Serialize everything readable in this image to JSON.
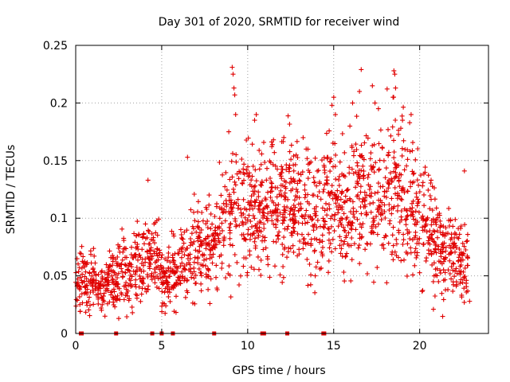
{
  "chart_data": {
    "type": "scatter",
    "title": "Day 301 of 2020, SRMTID for receiver wind",
    "xlabel": "GPS time / hours",
    "ylabel": "SRMTID / TECUs",
    "xlim": [
      0,
      24
    ],
    "ylim": [
      0,
      0.25
    ],
    "x_ticks": [
      0,
      5,
      10,
      15,
      20
    ],
    "x_tick_labels": [
      "0",
      "5",
      "10",
      "15",
      "20"
    ],
    "y_ticks": [
      0,
      0.05,
      0.1,
      0.15,
      0.2,
      0.25
    ],
    "y_tick_labels": [
      "0",
      "0.05",
      "0.1",
      "0.15",
      "0.2",
      "0.25"
    ],
    "grid": true,
    "legend": "none",
    "color": "#e00000",
    "marker": "plus",
    "series": [
      {
        "name": "SRMTID",
        "points_per_hour": 85,
        "x_range": [
          0,
          22.8
        ],
        "envelope": [
          {
            "x": 0.0,
            "y": 0.045,
            "spread": 0.012
          },
          {
            "x": 1.0,
            "y": 0.045,
            "spread": 0.012
          },
          {
            "x": 1.6,
            "y": 0.04,
            "spread": 0.01
          },
          {
            "x": 2.4,
            "y": 0.05,
            "spread": 0.014
          },
          {
            "x": 3.5,
            "y": 0.06,
            "spread": 0.016
          },
          {
            "x": 4.2,
            "y": 0.065,
            "spread": 0.018
          },
          {
            "x": 4.8,
            "y": 0.06,
            "spread": 0.016
          },
          {
            "x": 5.2,
            "y": 0.048,
            "spread": 0.013
          },
          {
            "x": 6.0,
            "y": 0.055,
            "spread": 0.015
          },
          {
            "x": 6.8,
            "y": 0.075,
            "spread": 0.02
          },
          {
            "x": 7.8,
            "y": 0.075,
            "spread": 0.02
          },
          {
            "x": 8.6,
            "y": 0.09,
            "spread": 0.025
          },
          {
            "x": 9.4,
            "y": 0.11,
            "spread": 0.028
          },
          {
            "x": 10.5,
            "y": 0.11,
            "spread": 0.028
          },
          {
            "x": 12.0,
            "y": 0.115,
            "spread": 0.028
          },
          {
            "x": 13.2,
            "y": 0.11,
            "spread": 0.026
          },
          {
            "x": 14.3,
            "y": 0.105,
            "spread": 0.026
          },
          {
            "x": 15.0,
            "y": 0.115,
            "spread": 0.03
          },
          {
            "x": 15.6,
            "y": 0.1,
            "spread": 0.028
          },
          {
            "x": 16.5,
            "y": 0.125,
            "spread": 0.032
          },
          {
            "x": 17.8,
            "y": 0.12,
            "spread": 0.032
          },
          {
            "x": 19.0,
            "y": 0.12,
            "spread": 0.032
          },
          {
            "x": 20.2,
            "y": 0.105,
            "spread": 0.028
          },
          {
            "x": 21.0,
            "y": 0.075,
            "spread": 0.02
          },
          {
            "x": 22.0,
            "y": 0.07,
            "spread": 0.018
          },
          {
            "x": 22.8,
            "y": 0.06,
            "spread": 0.016
          }
        ],
        "outliers": [
          {
            "x": 4.2,
            "y": 0.133
          },
          {
            "x": 6.5,
            "y": 0.153
          },
          {
            "x": 9.1,
            "y": 0.231
          },
          {
            "x": 9.15,
            "y": 0.225
          },
          {
            "x": 9.2,
            "y": 0.213
          },
          {
            "x": 9.25,
            "y": 0.207
          },
          {
            "x": 9.3,
            "y": 0.19
          },
          {
            "x": 8.9,
            "y": 0.175
          },
          {
            "x": 10.5,
            "y": 0.19
          },
          {
            "x": 10.4,
            "y": 0.185
          },
          {
            "x": 11.5,
            "y": 0.168
          },
          {
            "x": 12.1,
            "y": 0.17
          },
          {
            "x": 13.4,
            "y": 0.16
          },
          {
            "x": 15.0,
            "y": 0.205
          },
          {
            "x": 14.9,
            "y": 0.198
          },
          {
            "x": 15.1,
            "y": 0.19
          },
          {
            "x": 16.6,
            "y": 0.229
          },
          {
            "x": 16.1,
            "y": 0.2
          },
          {
            "x": 16.5,
            "y": 0.21
          },
          {
            "x": 17.4,
            "y": 0.2
          },
          {
            "x": 17.6,
            "y": 0.195
          },
          {
            "x": 18.5,
            "y": 0.228
          },
          {
            "x": 18.55,
            "y": 0.225
          },
          {
            "x": 18.6,
            "y": 0.213
          },
          {
            "x": 18.45,
            "y": 0.205
          },
          {
            "x": 19.0,
            "y": 0.185
          },
          {
            "x": 19.5,
            "y": 0.19
          },
          {
            "x": 22.6,
            "y": 0.141
          },
          {
            "x": 2.5,
            "y": 0.013
          },
          {
            "x": 1.7,
            "y": 0.015
          },
          {
            "x": 3.3,
            "y": 0.018
          },
          {
            "x": 20.8,
            "y": 0.021
          },
          {
            "x": 7.8,
            "y": 0.026
          },
          {
            "x": 22.9,
            "y": 0.028
          }
        ]
      }
    ],
    "zero_markers_x": [
      0.3,
      0.35,
      2.35,
      4.45,
      5.0,
      5.65,
      8.05,
      10.85,
      10.95,
      12.3,
      14.4,
      14.45
    ]
  }
}
